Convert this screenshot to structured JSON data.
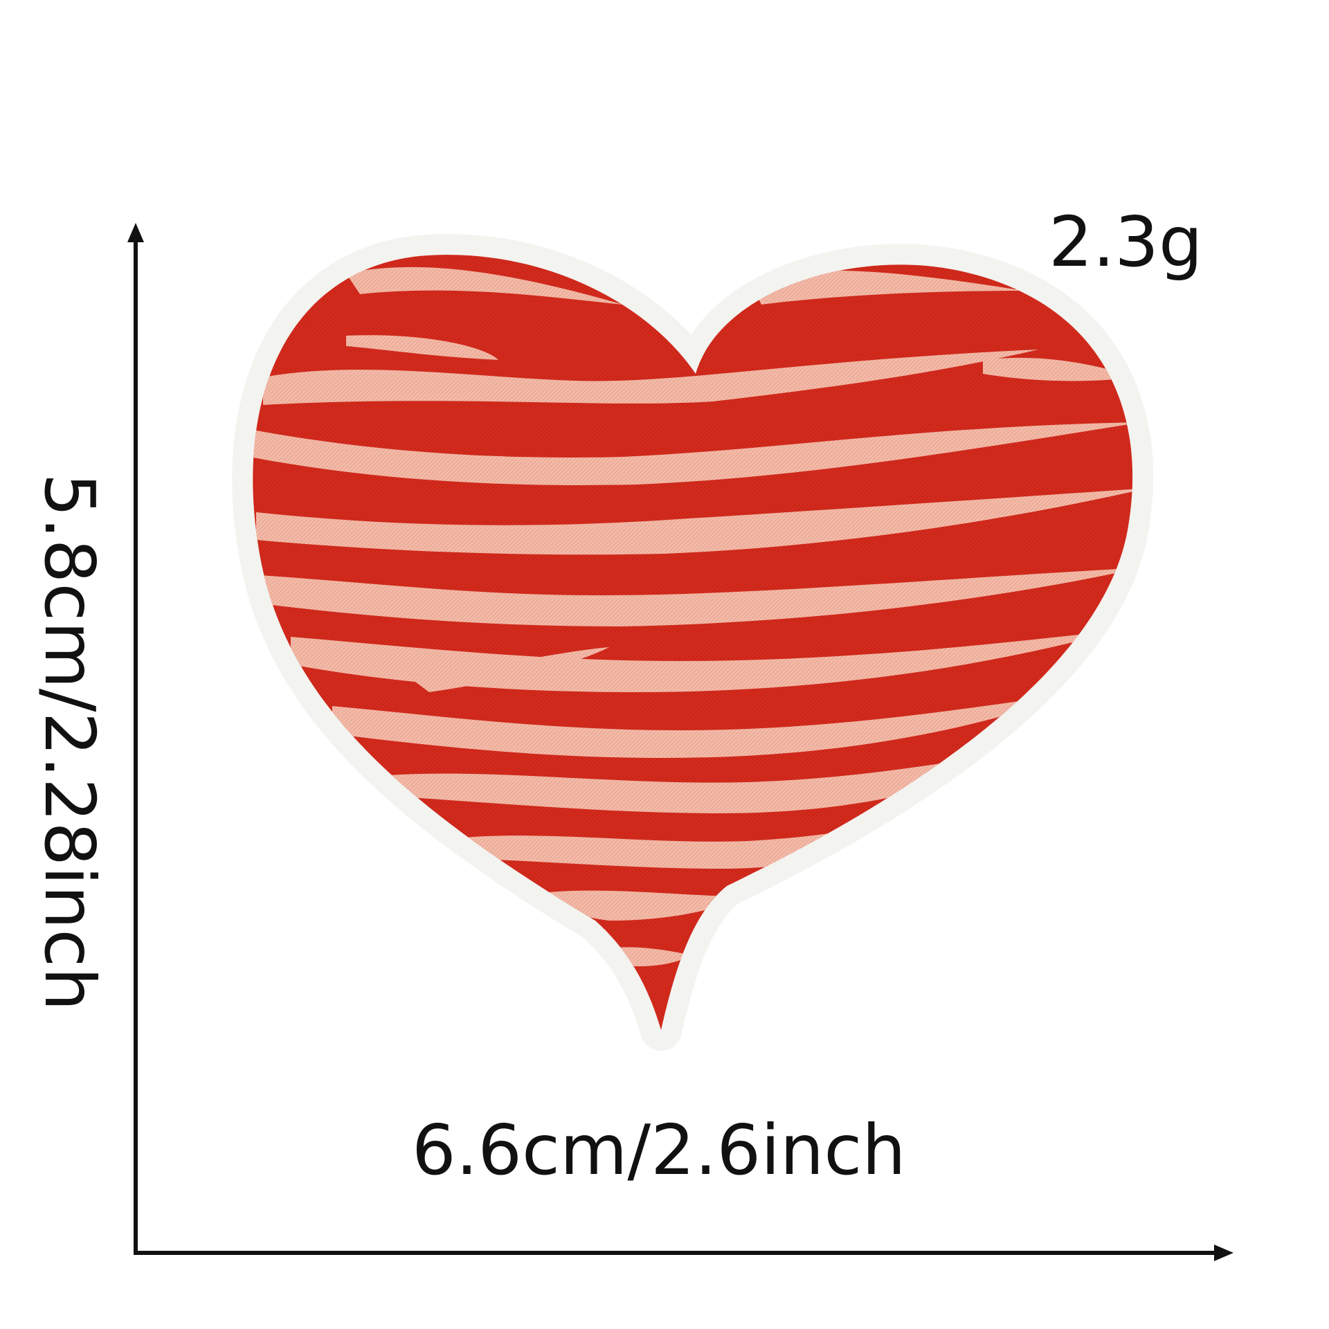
{
  "product": {
    "weight_label": "2.3g",
    "width_label": "6.6cm/2.6inch",
    "height_label": "5.8cm/2.28inch"
  },
  "colors": {
    "background": "#ffffff",
    "heart_red": "#d42a1c",
    "stripe_pink": "#f6b9a6",
    "felt_border": "#f3f3f0",
    "text": "#111111"
  },
  "icons": {
    "heart": "striped-embroidered-heart-patch",
    "width_arrow": "horizontal-dimension-arrow",
    "height_arrow": "vertical-dimension-arrow"
  }
}
